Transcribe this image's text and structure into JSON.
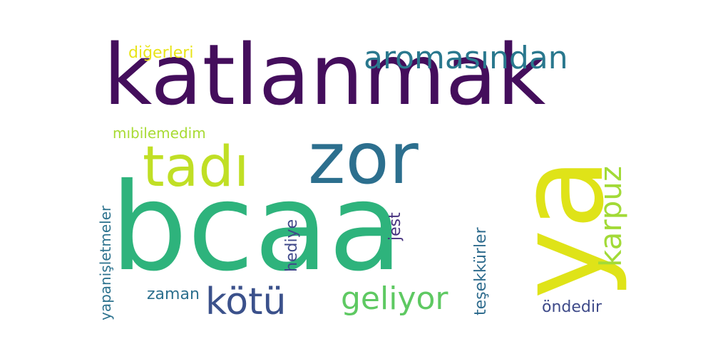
{
  "word_cloud": {
    "background": "#ffffff",
    "words": [
      {
        "id": "katlanmak",
        "text": "katlanmak",
        "color": "#440e5c",
        "orientation": "horizontal"
      },
      {
        "id": "bcaa",
        "text": "bcaa",
        "color": "#2eb37c",
        "orientation": "horizontal"
      },
      {
        "id": "ya",
        "text": "ya",
        "color": "#dfe318",
        "orientation": "vertical"
      },
      {
        "id": "zor",
        "text": "zor",
        "color": "#2c6f8e",
        "orientation": "horizontal"
      },
      {
        "id": "tadi",
        "text": "tadı",
        "color": "#c0df25",
        "orientation": "horizontal"
      },
      {
        "id": "aromasindan",
        "text": "aromasından",
        "color": "#2a788e",
        "orientation": "horizontal"
      },
      {
        "id": "kotu",
        "text": "kötü",
        "color": "#3b518b",
        "orientation": "horizontal"
      },
      {
        "id": "geliyor",
        "text": "geliyor",
        "color": "#5ec962",
        "orientation": "horizontal"
      },
      {
        "id": "karpuz",
        "text": "karpuz",
        "color": "#a2da37",
        "orientation": "vertical"
      },
      {
        "id": "digerleri",
        "text": "diğerleri",
        "color": "#e8e419",
        "orientation": "horizontal"
      },
      {
        "id": "mibilemedim",
        "text": "mıbilemedim",
        "color": "#a8db34",
        "orientation": "horizontal"
      },
      {
        "id": "yapanisletmeler",
        "text": "yapanişletmeler",
        "color": "#2c728e",
        "orientation": "vertical"
      },
      {
        "id": "jest",
        "text": "jest",
        "color": "#46317e",
        "orientation": "vertical"
      },
      {
        "id": "hediye",
        "text": "hediye",
        "color": "#3f4889",
        "orientation": "vertical"
      },
      {
        "id": "tesekkurler",
        "text": "teşekkürler",
        "color": "#2f6c8e",
        "orientation": "vertical"
      },
      {
        "id": "zaman",
        "text": "zaman",
        "color": "#2d708e",
        "orientation": "horizontal"
      },
      {
        "id": "ondedir",
        "text": "öndedir",
        "color": "#3e4a89",
        "orientation": "horizontal"
      }
    ]
  }
}
